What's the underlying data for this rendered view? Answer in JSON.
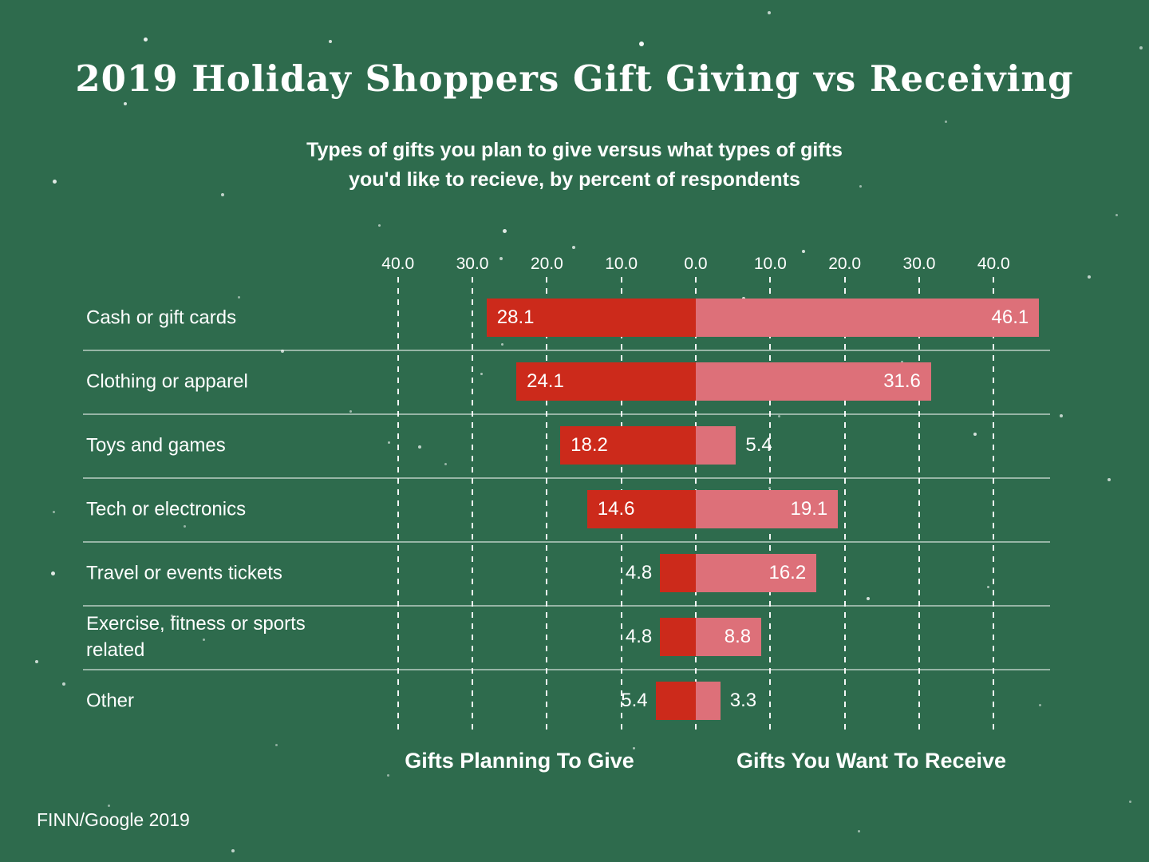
{
  "page": {
    "background_color": "#2e6b4d",
    "text_color": "#ffffff"
  },
  "chart_data": {
    "type": "bar",
    "variant": "horizontal-diverging",
    "title": "2019 Holiday Shoppers Gift Giving vs Receiving",
    "subtitle_line1": "Types of gifts you plan to give versus what types of gifts",
    "subtitle_line2": "you'd like to recieve, by percent of respondents",
    "categories": [
      "Cash or gift cards",
      "Clothing or apparel",
      "Toys and games",
      "Tech or electronics",
      "Travel or events tickets",
      "Exercise, fitness or sports related",
      "Other"
    ],
    "series": [
      {
        "name": "Gifts Planning To Give",
        "side": "left",
        "color": "#cc2a1b",
        "values": [
          28.1,
          24.1,
          18.2,
          14.6,
          4.8,
          4.8,
          5.4
        ]
      },
      {
        "name": "Gifts You Want To Receive",
        "side": "right",
        "color": "#dd7079",
        "values": [
          46.1,
          31.6,
          5.4,
          19.1,
          16.2,
          8.8,
          3.3
        ]
      }
    ],
    "value_labels": {
      "left": [
        "28.1",
        "24.1",
        "18.2",
        "14.6",
        "4.8",
        "4.8",
        "5.4"
      ],
      "right": [
        "46.1",
        "31.6",
        "5.4",
        "19.1",
        "16.2",
        "8.8",
        "3.3"
      ]
    },
    "x_axis": {
      "tick_labels": [
        "40.0",
        "30.0",
        "20.0",
        "10.0",
        "0.0",
        "10.0",
        "20.0",
        "30.0",
        "40.0"
      ],
      "tick_values": [
        -40,
        -30,
        -20,
        -10,
        0,
        10,
        20,
        30,
        40
      ],
      "unit": "percent of respondents",
      "gridlines": "dashed-vertical-white"
    },
    "legend": {
      "position": "bottom",
      "left_label": "Gifts Planning To Give",
      "right_label": "Gifts You Want To Receive"
    },
    "source": "FINN/Google 2019",
    "colors": {
      "background": "#2e6b4d",
      "give_bar": "#cc2a1b",
      "receive_bar": "#dd7079",
      "text": "#ffffff",
      "gridline": "rgba(255,255,255,0.95)",
      "row_separator": "rgba(255,255,255,0.5)"
    }
  }
}
